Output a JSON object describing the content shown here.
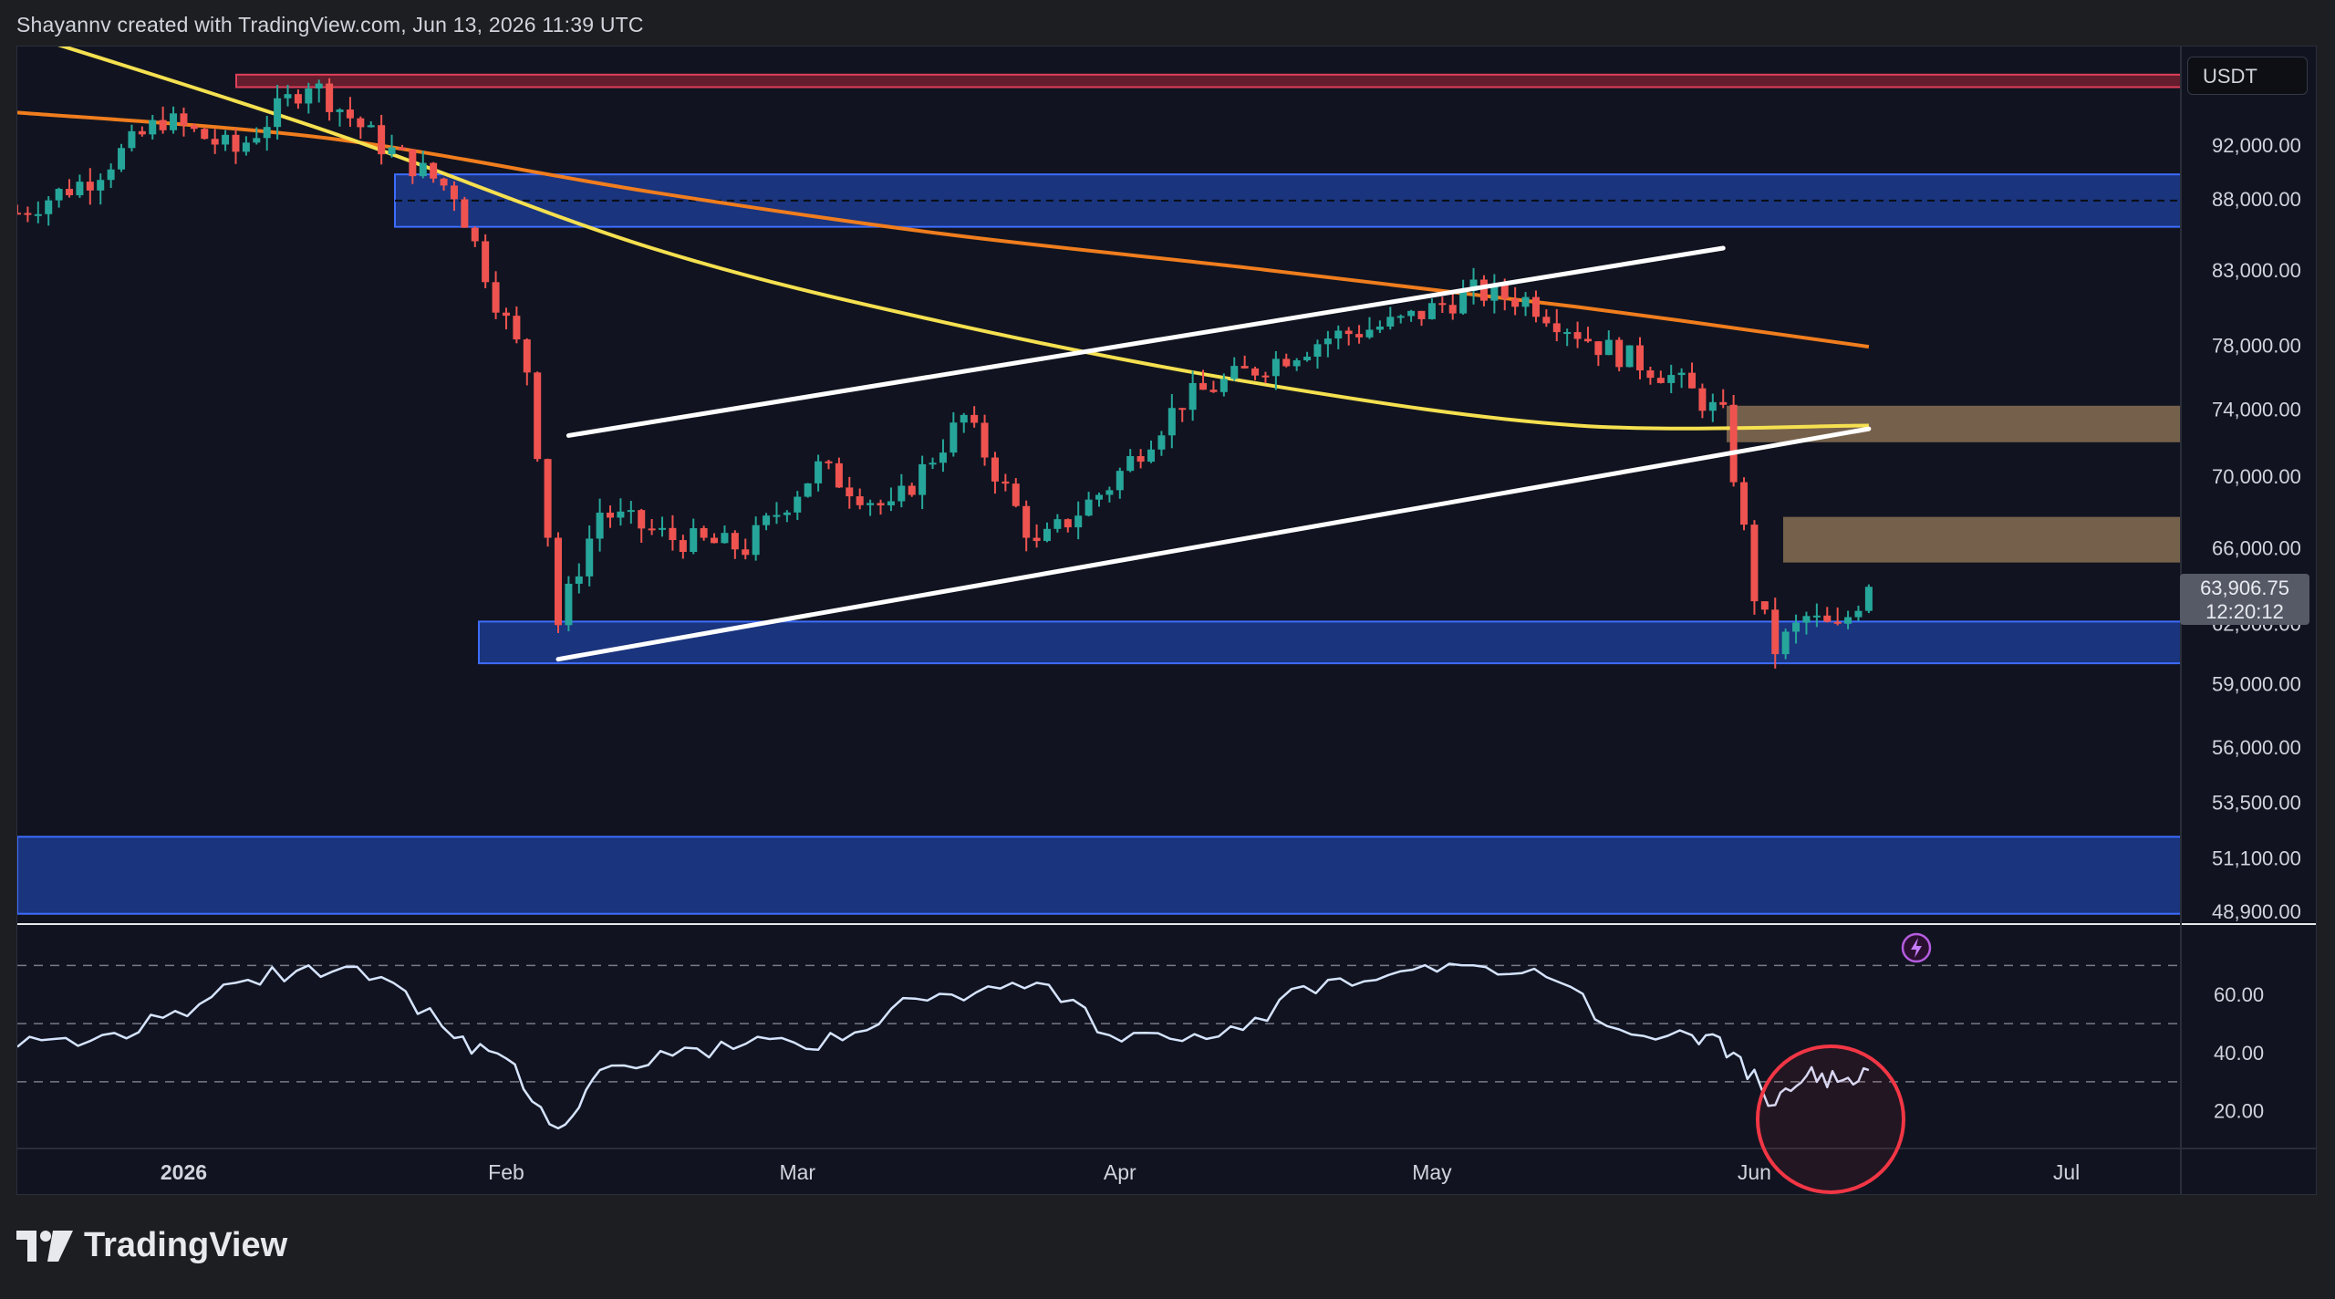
{
  "header": {
    "credit": "Shayannv created with TradingView.com, Jun 13, 2026 11:39 UTC"
  },
  "brand": {
    "name": "TradingView",
    "logo_icon": "tradingview-logo-icon"
  },
  "currency": "USDT",
  "current_price": {
    "value": "63,906.75",
    "countdown": "12:20:12"
  },
  "icons": {
    "flash": "flash-icon"
  },
  "colors": {
    "up": "#26a69a",
    "down": "#ef5350",
    "ma_fast": "#f5e050",
    "ma_slow": "#f07d1e",
    "demand_zone": "#2962ff",
    "supply_zone": "#c8a070",
    "rsi_line": "#d6e4ff",
    "highlight_circle": "#f23645"
  },
  "chart_data": [
    {
      "type": "candlestick",
      "title": "",
      "price_axis": {
        "scale": "log",
        "ticks": [
          "92,000.00",
          "88,000.00",
          "83,000.00",
          "78,000.00",
          "74,000.00",
          "70,000.00",
          "66,000.00",
          "62,000.00",
          "59,000.00",
          "56,000.00",
          "53,500.00",
          "51,100.00",
          "48,900.00"
        ]
      },
      "x_axis": {
        "ticks": [
          "2026",
          "Feb",
          "Mar",
          "Apr",
          "May",
          "Jun",
          "Jul"
        ],
        "range": [
          "2025-12-16",
          "2026-07-12"
        ]
      },
      "series": [
        {
          "type": "candles",
          "x": [
            "2025-12-16",
            "2025-12-23",
            "2025-12-30",
            "2026-01-06",
            "2026-01-13",
            "2026-01-20",
            "2026-01-27",
            "2026-01-31",
            "2026-02-03",
            "2026-02-06",
            "2026-02-10",
            "2026-02-17",
            "2026-02-24",
            "2026-03-03",
            "2026-03-10",
            "2026-03-17",
            "2026-03-24",
            "2026-03-31",
            "2026-04-07",
            "2026-04-14",
            "2026-04-21",
            "2026-04-28",
            "2026-05-05",
            "2026-05-10",
            "2026-05-17",
            "2026-05-24",
            "2026-05-29",
            "2026-06-01",
            "2026-06-03",
            "2026-06-06",
            "2026-06-09",
            "2026-06-12"
          ],
          "close": [
            87000,
            89500,
            94000,
            91500,
            97000,
            92000,
            88500,
            81000,
            76500,
            62000,
            68000,
            66500,
            66000,
            70500,
            68000,
            73500,
            66000,
            69500,
            74500,
            76500,
            78500,
            79500,
            81500,
            81000,
            78000,
            76000,
            73500,
            63500,
            60700,
            62300,
            61600,
            63906.75
          ]
        },
        {
          "name": "",
          "type": "line",
          "x": [
            "2025-12-16",
            "2026-01-15",
            "2026-02-15",
            "2026-03-15",
            "2026-04-15",
            "2026-05-15",
            "2026-06-12"
          ],
          "values": [
            94500,
            92500,
            88500,
            85500,
            83000,
            80500,
            77900
          ]
        },
        {
          "name": "",
          "type": "line",
          "x": [
            "2025-12-16",
            "2026-01-15",
            "2026-02-15",
            "2026-03-15",
            "2026-04-15",
            "2026-05-15",
            "2026-06-12"
          ],
          "values": [
            101000,
            93000,
            84500,
            79500,
            75500,
            73000,
            73000
          ]
        }
      ],
      "zones": [
        {
          "kind": "supply",
          "y": [
            97500,
            96500
          ]
        },
        {
          "kind": "demand",
          "y": [
            89800,
            86000
          ]
        },
        {
          "kind": "demand",
          "y": [
            62100,
            60000
          ]
        },
        {
          "kind": "demand",
          "y": [
            52000,
            48800
          ]
        },
        {
          "kind": "orange",
          "y": [
            74200,
            72000
          ]
        },
        {
          "kind": "orange",
          "y": [
            67700,
            65200
          ]
        }
      ],
      "trendlines": [
        {
          "from": [
            "2026-02-07",
            72400
          ],
          "to": [
            "2026-05-29",
            84500
          ]
        },
        {
          "from": [
            "2026-02-06",
            60200
          ],
          "to": [
            "2026-06-12",
            72800
          ]
        }
      ]
    },
    {
      "type": "line",
      "title": "",
      "y_axis": {
        "ticks": [
          "60.00",
          "40.00",
          "20.00"
        ],
        "range": [
          8,
          77
        ]
      },
      "levels": [
        70,
        50,
        30
      ],
      "series": [
        {
          "name": "",
          "x": [
            "2025-12-16",
            "2025-12-23",
            "2025-12-30",
            "2026-01-06",
            "2026-01-13",
            "2026-01-20",
            "2026-01-27",
            "2026-02-01",
            "2026-02-06",
            "2026-02-10",
            "2026-02-17",
            "2026-02-24",
            "2026-03-03",
            "2026-03-10",
            "2026-03-17",
            "2026-03-24",
            "2026-03-31",
            "2026-04-07",
            "2026-04-14",
            "2026-04-21",
            "2026-04-28",
            "2026-05-05",
            "2026-05-12",
            "2026-05-19",
            "2026-05-26",
            "2026-05-30",
            "2026-06-03",
            "2026-06-06",
            "2026-06-09",
            "2026-06-12"
          ],
          "values": [
            42,
            44,
            52,
            64,
            70,
            66,
            45,
            38,
            14,
            34,
            39,
            43,
            41,
            55,
            58,
            64,
            46,
            44,
            52,
            65,
            68,
            70,
            66,
            48,
            46,
            40,
            22,
            32,
            30,
            34
          ]
        }
      ]
    }
  ]
}
